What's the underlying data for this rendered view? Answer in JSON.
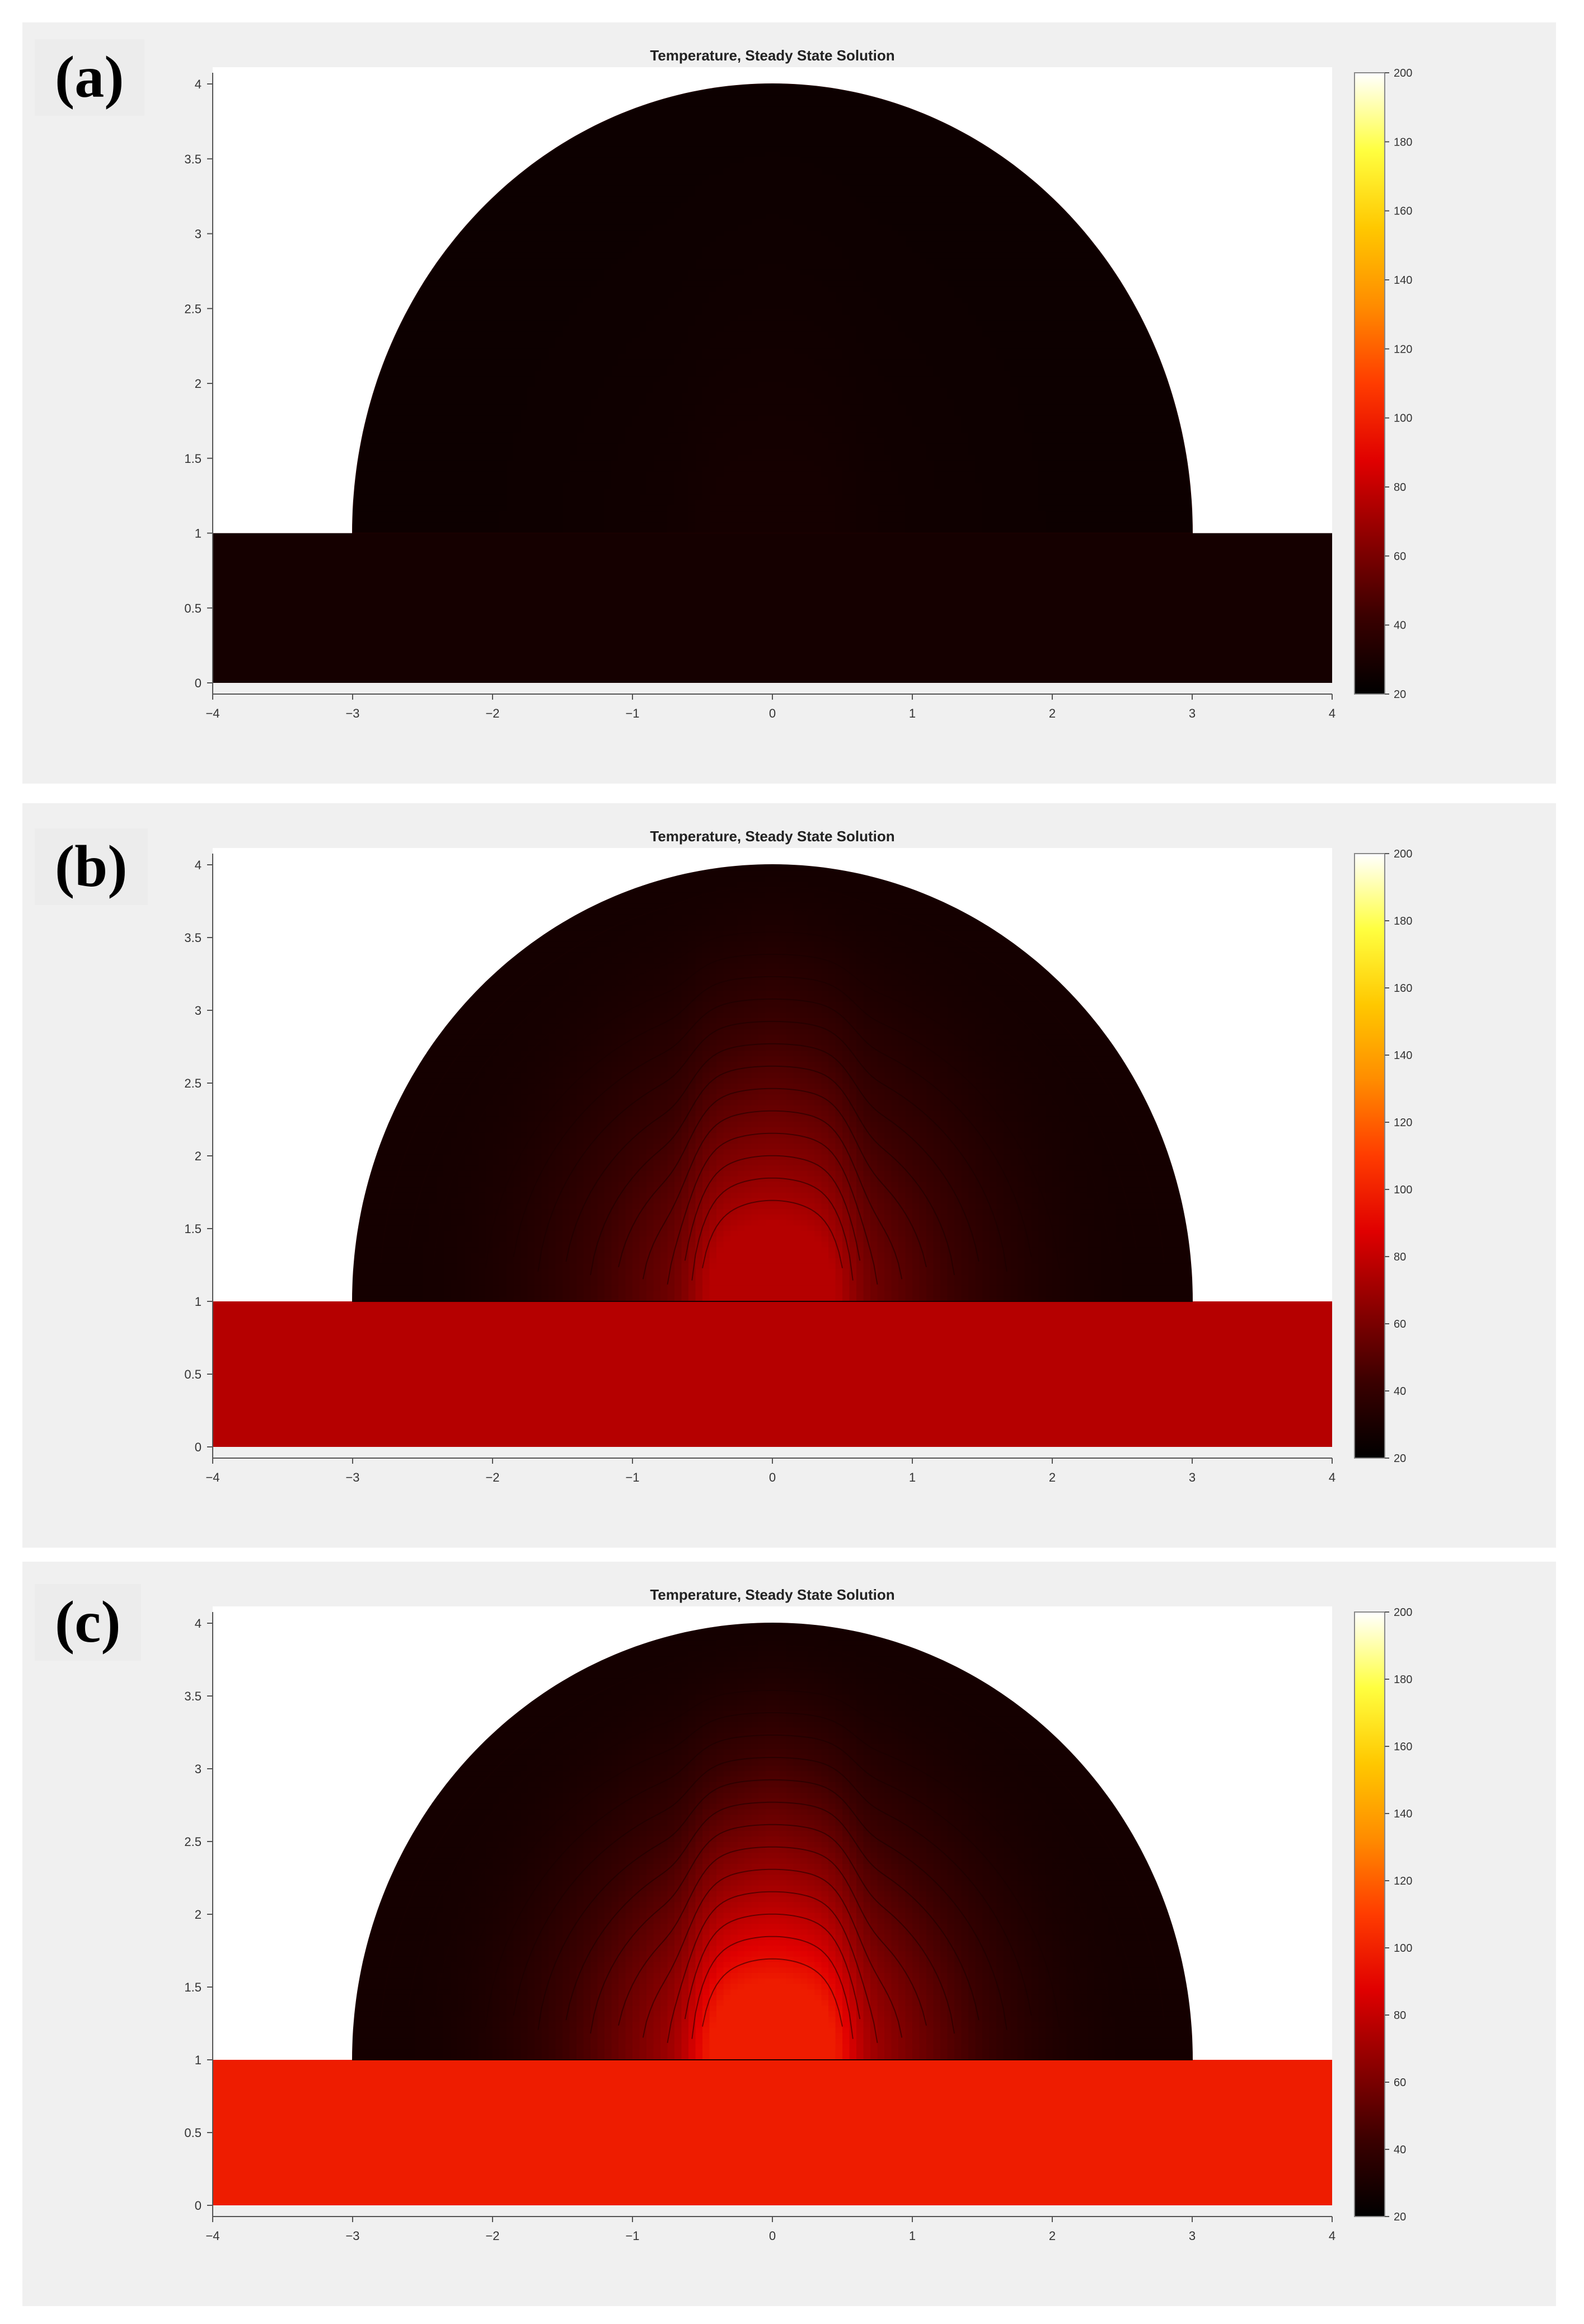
{
  "chart_data": [
    {
      "type": "heatmap",
      "panel_label": "(a)",
      "title": "Temperature, Steady State Solution",
      "xlabel": "",
      "ylabel": "",
      "x_ticks": [
        "−4",
        "−3",
        "−2",
        "−1",
        "0",
        "1",
        "2",
        "3",
        "4"
      ],
      "y_ticks": [
        "0",
        "0.5",
        "1",
        "1.5",
        "2",
        "2.5",
        "3",
        "3.5",
        "4"
      ],
      "xlim": [
        -4,
        4
      ],
      "ylim": [
        0,
        4
      ],
      "colorbar": {
        "range": [
          20,
          200
        ],
        "ticks": [
          "20",
          "40",
          "60",
          "80",
          "100",
          "120",
          "140",
          "160",
          "180",
          "200"
        ]
      },
      "geometry": {
        "slab_x": [
          -4,
          4
        ],
        "slab_y": [
          0,
          1
        ],
        "dome_center": [
          0,
          1
        ],
        "dome_radius_x": 3,
        "dome_radius_y": 3
      },
      "temperature": {
        "slab": 28,
        "dome_top": 25
      },
      "contour_lines": false
    },
    {
      "type": "heatmap",
      "panel_label": "(b)",
      "title": "Temperature, Steady State Solution",
      "xlabel": "",
      "ylabel": "",
      "x_ticks": [
        "−4",
        "−3",
        "−2",
        "−1",
        "0",
        "1",
        "2",
        "3",
        "4"
      ],
      "y_ticks": [
        "0",
        "0.5",
        "1",
        "1.5",
        "2",
        "2.5",
        "3",
        "3.5",
        "4"
      ],
      "xlim": [
        -4,
        4
      ],
      "ylim": [
        0,
        4
      ],
      "colorbar": {
        "range": [
          20,
          200
        ],
        "ticks": [
          "20",
          "40",
          "60",
          "80",
          "100",
          "120",
          "140",
          "160",
          "180",
          "200"
        ]
      },
      "geometry": {
        "slab_x": [
          -4,
          4
        ],
        "slab_y": [
          0,
          1
        ],
        "dome_center": [
          0,
          1
        ],
        "dome_radius_x": 3,
        "dome_radius_y": 3
      },
      "temperature": {
        "slab": 76,
        "dome_top": 28
      },
      "contour_lines": true
    },
    {
      "type": "heatmap",
      "panel_label": "(c)",
      "title": "Temperature, Steady State Solution",
      "xlabel": "",
      "ylabel": "",
      "x_ticks": [
        "−4",
        "−3",
        "−2",
        "−1",
        "0",
        "1",
        "2",
        "3",
        "4"
      ],
      "y_ticks": [
        "0",
        "0.5",
        "1",
        "1.5",
        "2",
        "2.5",
        "3",
        "3.5",
        "4"
      ],
      "xlim": [
        -4,
        4
      ],
      "ylim": [
        0,
        4
      ],
      "colorbar": {
        "range": [
          20,
          200
        ],
        "ticks": [
          "20",
          "40",
          "60",
          "80",
          "100",
          "120",
          "140",
          "160",
          "180",
          "200"
        ]
      },
      "geometry": {
        "slab_x": [
          -4,
          4
        ],
        "slab_y": [
          0,
          1
        ],
        "dome_center": [
          0,
          1
        ],
        "dome_radius_x": 3,
        "dome_radius_y": 3
      },
      "temperature": {
        "slab": 98,
        "dome_top": 28
      },
      "contour_lines": true
    }
  ],
  "colors": {
    "colormap": [
      "#000000",
      "#3a0000",
      "#8c0000",
      "#e00000",
      "#ff3c00",
      "#ff8c00",
      "#ffc800",
      "#ffff40",
      "#ffffff"
    ],
    "contour": "#1a0000",
    "axes_background": "#ffffff"
  }
}
